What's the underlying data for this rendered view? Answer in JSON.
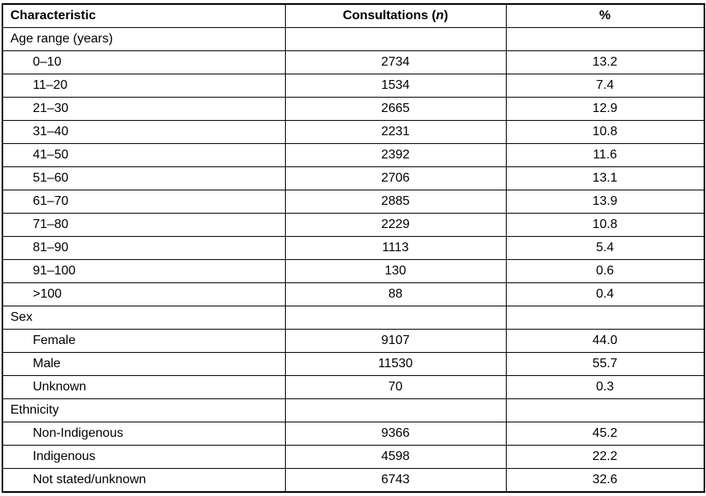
{
  "table": {
    "border_color": "#000000",
    "background_color": "#ffffff",
    "text_color": "#000000",
    "header": {
      "characteristic": "Characteristic",
      "consultations_prefix": "Consultations (",
      "consultations_n": "n",
      "consultations_suffix": ")",
      "percent": "%"
    },
    "sections": [
      {
        "title": "Age range (years)",
        "rows": [
          {
            "label": "0–10",
            "consultations": "2734",
            "percent": "13.2"
          },
          {
            "label": "11–20",
            "consultations": "1534",
            "percent": "7.4"
          },
          {
            "label": "21–30",
            "consultations": "2665",
            "percent": "12.9"
          },
          {
            "label": "31–40",
            "consultations": "2231",
            "percent": "10.8"
          },
          {
            "label": "41–50",
            "consultations": "2392",
            "percent": "11.6"
          },
          {
            "label": "51–60",
            "consultations": "2706",
            "percent": "13.1"
          },
          {
            "label": "61–70",
            "consultations": "2885",
            "percent": "13.9"
          },
          {
            "label": "71–80",
            "consultations": "2229",
            "percent": "10.8"
          },
          {
            "label": "81–90",
            "consultations": "1113",
            "percent": "5.4"
          },
          {
            "label": "91–100",
            "consultations": "130",
            "percent": "0.6"
          },
          {
            "label": ">100",
            "consultations": "88",
            "percent": "0.4"
          }
        ]
      },
      {
        "title": "Sex",
        "rows": [
          {
            "label": "Female",
            "consultations": "9107",
            "percent": "44.0"
          },
          {
            "label": "Male",
            "consultations": "11530",
            "percent": "55.7"
          },
          {
            "label": "Unknown",
            "consultations": "70",
            "percent": "0.3"
          }
        ]
      },
      {
        "title": "Ethnicity",
        "rows": [
          {
            "label": "Non-Indigenous",
            "consultations": "9366",
            "percent": "45.2"
          },
          {
            "label": "Indigenous",
            "consultations": "4598",
            "percent": "22.2"
          },
          {
            "label": "Not stated/unknown",
            "consultations": "6743",
            "percent": "32.6"
          }
        ]
      }
    ]
  }
}
